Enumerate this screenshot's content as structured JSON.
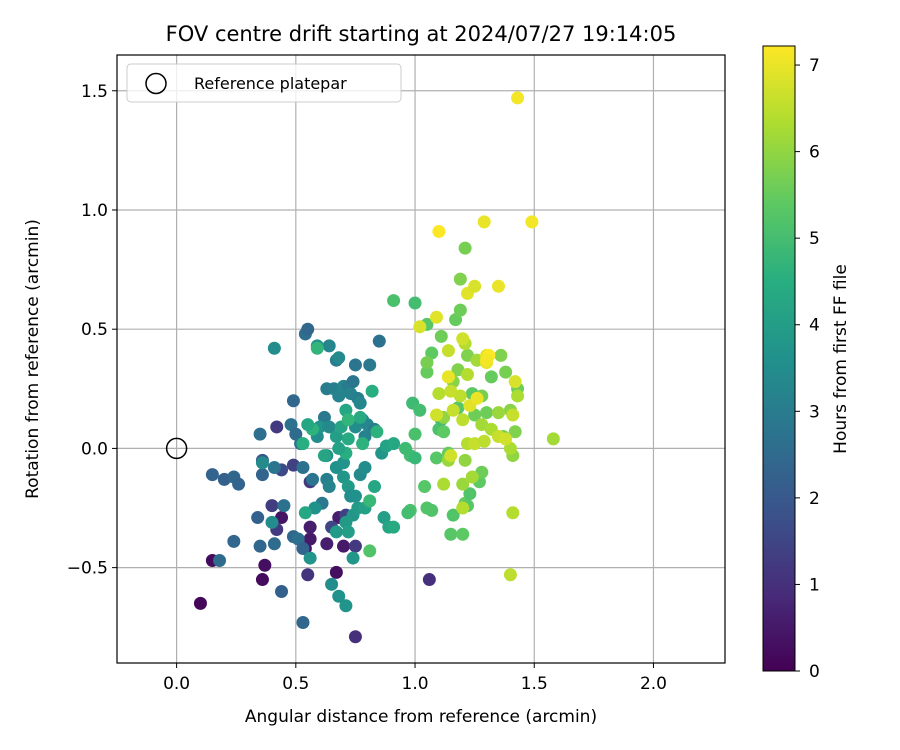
{
  "chart_data": {
    "type": "scatter",
    "title": "FOV centre drift starting at 2024/07/27 19:14:05",
    "xlabel": "Angular distance from reference (arcmin)",
    "ylabel": "Rotation from reference (arcmin)",
    "xlim": [
      -0.25,
      2.3
    ],
    "ylim": [
      -0.9,
      1.65
    ],
    "xticks": [
      0.0,
      0.5,
      1.0,
      1.5,
      2.0
    ],
    "xtick_labels": [
      "0.0",
      "0.5",
      "1.0",
      "1.5",
      "2.0"
    ],
    "yticks": [
      -0.5,
      0.0,
      0.5,
      1.0,
      1.5
    ],
    "ytick_labels": [
      "−0.5",
      "0.0",
      "0.5",
      "1.0",
      "1.5"
    ],
    "grid": true,
    "legend": {
      "position": "top-left",
      "entries": [
        {
          "label": "Reference platepar",
          "marker": "open-circle"
        }
      ]
    },
    "reference_point": {
      "x": 0.0,
      "y": 0.0
    },
    "colorbar": {
      "label": "Hours from first FF file",
      "colormap": "viridis",
      "range": [
        0,
        7.22
      ],
      "ticks": [
        0,
        1,
        2,
        3,
        4,
        5,
        6,
        7
      ],
      "tick_labels": [
        "0",
        "1",
        "2",
        "3",
        "4",
        "5",
        "6",
        "7"
      ]
    },
    "points": [
      {
        "x": 0.1,
        "y": -0.65,
        "c": 0.1
      },
      {
        "x": 0.15,
        "y": -0.47,
        "c": 0.2
      },
      {
        "x": 0.36,
        "y": -0.55,
        "c": 0.2
      },
      {
        "x": 0.37,
        "y": -0.49,
        "c": 0.3
      },
      {
        "x": 0.44,
        "y": -0.29,
        "c": 0.4
      },
      {
        "x": 0.54,
        "y": -0.42,
        "c": 0.4
      },
      {
        "x": 0.56,
        "y": -0.38,
        "c": 0.5
      },
      {
        "x": 0.67,
        "y": -0.52,
        "c": 0.3
      },
      {
        "x": 0.7,
        "y": -0.41,
        "c": 0.5
      },
      {
        "x": 0.68,
        "y": -0.29,
        "c": 0.6
      },
      {
        "x": 0.56,
        "y": -0.33,
        "c": 0.6
      },
      {
        "x": 0.63,
        "y": -0.4,
        "c": 0.6
      },
      {
        "x": 0.75,
        "y": -0.79,
        "c": 1.0
      },
      {
        "x": 0.55,
        "y": -0.53,
        "c": 1.1
      },
      {
        "x": 0.75,
        "y": -0.41,
        "c": 1.2
      },
      {
        "x": 1.06,
        "y": -0.55,
        "c": 1.0
      },
      {
        "x": 0.42,
        "y": -0.34,
        "c": 1.2
      },
      {
        "x": 0.4,
        "y": -0.24,
        "c": 1.3
      },
      {
        "x": 0.71,
        "y": -0.28,
        "c": 1.4
      },
      {
        "x": 0.65,
        "y": -0.33,
        "c": 1.5
      },
      {
        "x": 0.42,
        "y": 0.09,
        "c": 1.2
      },
      {
        "x": 0.49,
        "y": -0.07,
        "c": 1.4
      },
      {
        "x": 0.56,
        "y": -0.14,
        "c": 1.2
      },
      {
        "x": 0.44,
        "y": -0.09,
        "c": 1.6
      },
      {
        "x": 0.36,
        "y": -0.05,
        "c": 1.9
      },
      {
        "x": 0.15,
        "y": -0.11,
        "c": 2.3
      },
      {
        "x": 0.2,
        "y": -0.13,
        "c": 2.2
      },
      {
        "x": 0.24,
        "y": -0.12,
        "c": 2.4
      },
      {
        "x": 0.26,
        "y": -0.15,
        "c": 2.3
      },
      {
        "x": 0.36,
        "y": -0.11,
        "c": 2.3
      },
      {
        "x": 0.34,
        "y": -0.29,
        "c": 2.2
      },
      {
        "x": 0.24,
        "y": -0.39,
        "c": 2.4
      },
      {
        "x": 0.35,
        "y": -0.41,
        "c": 2.4
      },
      {
        "x": 0.18,
        "y": -0.47,
        "c": 2.5
      },
      {
        "x": 0.44,
        "y": -0.6,
        "c": 2.2
      },
      {
        "x": 0.53,
        "y": -0.73,
        "c": 2.4
      },
      {
        "x": 0.41,
        "y": -0.4,
        "c": 2.5
      },
      {
        "x": 0.49,
        "y": -0.37,
        "c": 2.4
      },
      {
        "x": 0.51,
        "y": -0.38,
        "c": 2.6
      },
      {
        "x": 0.53,
        "y": -0.42,
        "c": 2.3
      },
      {
        "x": 0.45,
        "y": -0.24,
        "c": 2.7
      },
      {
        "x": 0.35,
        "y": 0.06,
        "c": 2.6
      },
      {
        "x": 0.48,
        "y": 0.1,
        "c": 2.7
      },
      {
        "x": 0.5,
        "y": 0.06,
        "c": 2.5
      },
      {
        "x": 0.52,
        "y": 0.02,
        "c": 2.6
      },
      {
        "x": 0.49,
        "y": 0.2,
        "c": 2.4
      },
      {
        "x": 0.41,
        "y": -0.08,
        "c": 2.8
      },
      {
        "x": 0.54,
        "y": 0.48,
        "c": 2.6
      },
      {
        "x": 0.55,
        "y": 0.5,
        "c": 2.4
      },
      {
        "x": 0.57,
        "y": -0.13,
        "c": 2.8
      },
      {
        "x": 0.53,
        "y": -0.08,
        "c": 2.7
      },
      {
        "x": 0.61,
        "y": -0.23,
        "c": 2.9
      },
      {
        "x": 0.62,
        "y": 0.13,
        "c": 2.9
      },
      {
        "x": 0.63,
        "y": 0.25,
        "c": 3.0
      },
      {
        "x": 0.63,
        "y": -0.13,
        "c": 3.1
      },
      {
        "x": 0.64,
        "y": -0.16,
        "c": 3.2
      },
      {
        "x": 0.67,
        "y": 0.37,
        "c": 3.0
      },
      {
        "x": 0.66,
        "y": 0.25,
        "c": 3.1
      },
      {
        "x": 0.68,
        "y": 0.22,
        "c": 3.2
      },
      {
        "x": 0.7,
        "y": 0.26,
        "c": 3.3
      },
      {
        "x": 0.72,
        "y": 0.26,
        "c": 3.0
      },
      {
        "x": 0.73,
        "y": 0.23,
        "c": 3.2
      },
      {
        "x": 0.74,
        "y": 0.28,
        "c": 2.8
      },
      {
        "x": 0.76,
        "y": 0.21,
        "c": 3.1
      },
      {
        "x": 0.77,
        "y": 0.19,
        "c": 3.3
      },
      {
        "x": 0.78,
        "y": 0.12,
        "c": 3.4
      },
      {
        "x": 0.75,
        "y": 0.09,
        "c": 3.5
      },
      {
        "x": 0.79,
        "y": 0.05,
        "c": 3.2
      },
      {
        "x": 0.8,
        "y": 0.1,
        "c": 3.3
      },
      {
        "x": 0.83,
        "y": 0.08,
        "c": 3.0
      },
      {
        "x": 0.81,
        "y": 0.35,
        "c": 2.9
      },
      {
        "x": 0.85,
        "y": 0.45,
        "c": 2.7
      },
      {
        "x": 0.75,
        "y": 0.35,
        "c": 2.8
      },
      {
        "x": 0.68,
        "y": 0.38,
        "c": 3.4
      },
      {
        "x": 0.64,
        "y": 0.43,
        "c": 3.3
      },
      {
        "x": 0.59,
        "y": 0.43,
        "c": 3.6
      },
      {
        "x": 0.41,
        "y": 0.42,
        "c": 3.5
      },
      {
        "x": 0.36,
        "y": -0.06,
        "c": 3.4
      },
      {
        "x": 0.4,
        "y": -0.31,
        "c": 3.5
      },
      {
        "x": 0.58,
        "y": -0.25,
        "c": 3.6
      },
      {
        "x": 0.63,
        "y": -0.03,
        "c": 3.6
      },
      {
        "x": 0.59,
        "y": 0.05,
        "c": 3.5
      },
      {
        "x": 0.6,
        "y": 0.09,
        "c": 3.7
      },
      {
        "x": 0.64,
        "y": 0.09,
        "c": 3.4
      },
      {
        "x": 0.67,
        "y": -0.08,
        "c": 3.6
      },
      {
        "x": 0.7,
        "y": -0.12,
        "c": 3.8
      },
      {
        "x": 0.7,
        "y": -0.06,
        "c": 3.7
      },
      {
        "x": 0.72,
        "y": -0.16,
        "c": 3.9
      },
      {
        "x": 0.73,
        "y": -0.2,
        "c": 3.5
      },
      {
        "x": 0.74,
        "y": -0.28,
        "c": 3.8
      },
      {
        "x": 0.75,
        "y": -0.2,
        "c": 3.6
      },
      {
        "x": 0.77,
        "y": -0.11,
        "c": 3.4
      },
      {
        "x": 0.79,
        "y": -0.08,
        "c": 3.5
      },
      {
        "x": 0.56,
        "y": -0.46,
        "c": 3.7
      },
      {
        "x": 0.65,
        "y": -0.57,
        "c": 3.5
      },
      {
        "x": 0.68,
        "y": -0.62,
        "c": 3.6
      },
      {
        "x": 0.71,
        "y": -0.66,
        "c": 3.7
      },
      {
        "x": 0.74,
        "y": -0.46,
        "c": 3.8
      },
      {
        "x": 0.71,
        "y": -0.31,
        "c": 3.9
      },
      {
        "x": 0.67,
        "y": -0.35,
        "c": 3.9
      },
      {
        "x": 0.72,
        "y": -0.35,
        "c": 4.0
      },
      {
        "x": 0.76,
        "y": -0.25,
        "c": 3.9
      },
      {
        "x": 0.79,
        "y": -0.25,
        "c": 4.1
      },
      {
        "x": 0.87,
        "y": -0.29,
        "c": 4.0
      },
      {
        "x": 0.89,
        "y": -0.33,
        "c": 4.2
      },
      {
        "x": 0.91,
        "y": -0.33,
        "c": 4.4
      },
      {
        "x": 0.83,
        "y": -0.16,
        "c": 4.3
      },
      {
        "x": 0.86,
        "y": -0.02,
        "c": 3.8
      },
      {
        "x": 0.88,
        "y": 0.01,
        "c": 4.1
      },
      {
        "x": 0.91,
        "y": 0.02,
        "c": 4.3
      },
      {
        "x": 0.82,
        "y": 0.24,
        "c": 4.5
      },
      {
        "x": 0.84,
        "y": 0.07,
        "c": 4.6
      },
      {
        "x": 0.77,
        "y": 0.13,
        "c": 4.4
      },
      {
        "x": 0.72,
        "y": 0.04,
        "c": 4.4
      },
      {
        "x": 0.71,
        "y": -0.02,
        "c": 4.5
      },
      {
        "x": 0.57,
        "y": 0.08,
        "c": 4.6
      },
      {
        "x": 0.59,
        "y": 0.42,
        "c": 4.7
      },
      {
        "x": 0.55,
        "y": 0.1,
        "c": 4.3
      },
      {
        "x": 0.53,
        "y": 0.02,
        "c": 4.5
      },
      {
        "x": 0.54,
        "y": -0.27,
        "c": 4.3
      },
      {
        "x": 0.62,
        "y": -0.03,
        "c": 4.2
      },
      {
        "x": 0.67,
        "y": 0.05,
        "c": 4.0
      },
      {
        "x": 0.68,
        "y": 0.0,
        "c": 4.1
      },
      {
        "x": 0.69,
        "y": 0.09,
        "c": 4.2
      },
      {
        "x": 0.71,
        "y": 0.16,
        "c": 4.3
      },
      {
        "x": 0.72,
        "y": 0.12,
        "c": 4.7
      },
      {
        "x": 0.78,
        "y": 0.02,
        "c": 4.6
      },
      {
        "x": 0.81,
        "y": -0.22,
        "c": 4.8
      },
      {
        "x": 0.91,
        "y": 0.62,
        "c": 5.1
      },
      {
        "x": 1.0,
        "y": 0.61,
        "c": 5.0
      },
      {
        "x": 0.99,
        "y": 0.19,
        "c": 4.9
      },
      {
        "x": 1.02,
        "y": 0.16,
        "c": 5.0
      },
      {
        "x": 1.0,
        "y": 0.06,
        "c": 5.1
      },
      {
        "x": 0.98,
        "y": -0.03,
        "c": 5.0
      },
      {
        "x": 1.0,
        "y": -0.04,
        "c": 4.8
      },
      {
        "x": 0.96,
        "y": 0.0,
        "c": 4.9
      },
      {
        "x": 0.98,
        "y": -0.26,
        "c": 5.1
      },
      {
        "x": 0.97,
        "y": -0.27,
        "c": 5.0
      },
      {
        "x": 0.81,
        "y": -0.43,
        "c": 5.2
      },
      {
        "x": 1.04,
        "y": -0.16,
        "c": 5.3
      },
      {
        "x": 1.05,
        "y": -0.25,
        "c": 5.2
      },
      {
        "x": 1.07,
        "y": -0.26,
        "c": 5.2
      },
      {
        "x": 1.09,
        "y": -0.04,
        "c": 5.3
      },
      {
        "x": 1.1,
        "y": 0.08,
        "c": 5.1
      },
      {
        "x": 1.11,
        "y": 0.12,
        "c": 5.0
      },
      {
        "x": 1.12,
        "y": 0.07,
        "c": 5.4
      },
      {
        "x": 1.14,
        "y": -0.02,
        "c": 5.5
      },
      {
        "x": 1.15,
        "y": -0.36,
        "c": 5.3
      },
      {
        "x": 1.16,
        "y": -0.28,
        "c": 5.2
      },
      {
        "x": 1.2,
        "y": -0.36,
        "c": 5.4
      },
      {
        "x": 1.21,
        "y": -0.23,
        "c": 5.5
      },
      {
        "x": 1.22,
        "y": -0.24,
        "c": 5.3
      },
      {
        "x": 1.23,
        "y": -0.19,
        "c": 5.2
      },
      {
        "x": 1.27,
        "y": -0.14,
        "c": 5.4
      },
      {
        "x": 1.28,
        "y": -0.1,
        "c": 5.6
      },
      {
        "x": 1.05,
        "y": 0.52,
        "c": 5.3
      },
      {
        "x": 1.07,
        "y": 0.4,
        "c": 5.4
      },
      {
        "x": 1.05,
        "y": 0.32,
        "c": 5.5
      },
      {
        "x": 1.05,
        "y": 0.36,
        "c": 5.7
      },
      {
        "x": 1.11,
        "y": 0.47,
        "c": 5.6
      },
      {
        "x": 1.17,
        "y": 0.54,
        "c": 5.5
      },
      {
        "x": 1.18,
        "y": 0.33,
        "c": 5.8
      },
      {
        "x": 1.18,
        "y": 0.17,
        "c": 5.3
      },
      {
        "x": 1.21,
        "y": 0.84,
        "c": 5.7
      },
      {
        "x": 1.19,
        "y": 0.71,
        "c": 5.8
      },
      {
        "x": 1.19,
        "y": 0.58,
        "c": 5.6
      },
      {
        "x": 1.16,
        "y": 0.28,
        "c": 5.9
      },
      {
        "x": 1.22,
        "y": 0.39,
        "c": 5.8
      },
      {
        "x": 1.24,
        "y": 0.23,
        "c": 5.4
      },
      {
        "x": 1.25,
        "y": 0.14,
        "c": 5.6
      },
      {
        "x": 1.26,
        "y": 0.37,
        "c": 5.5
      },
      {
        "x": 1.28,
        "y": 0.22,
        "c": 5.7
      },
      {
        "x": 1.3,
        "y": 0.15,
        "c": 5.6
      },
      {
        "x": 1.32,
        "y": 0.3,
        "c": 5.5
      },
      {
        "x": 1.36,
        "y": 0.39,
        "c": 5.8
      },
      {
        "x": 1.38,
        "y": 0.32,
        "c": 5.7
      },
      {
        "x": 1.4,
        "y": 0.16,
        "c": 5.9
      },
      {
        "x": 1.43,
        "y": 0.25,
        "c": 5.6
      },
      {
        "x": 1.42,
        "y": 0.07,
        "c": 5.8
      },
      {
        "x": 1.37,
        "y": 0.05,
        "c": 5.7
      },
      {
        "x": 1.41,
        "y": -0.03,
        "c": 6.0
      },
      {
        "x": 1.14,
        "y": -0.05,
        "c": 6.1
      },
      {
        "x": 1.12,
        "y": 0.13,
        "c": 6.0
      },
      {
        "x": 1.2,
        "y": -0.15,
        "c": 6.1
      },
      {
        "x": 1.24,
        "y": -0.12,
        "c": 6.2
      },
      {
        "x": 1.21,
        "y": -0.05,
        "c": 6.0
      },
      {
        "x": 1.12,
        "y": -0.15,
        "c": 6.3
      },
      {
        "x": 1.28,
        "y": 0.1,
        "c": 6.2
      },
      {
        "x": 1.26,
        "y": 0.37,
        "c": 6.2
      },
      {
        "x": 1.35,
        "y": 0.15,
        "c": 6.1
      },
      {
        "x": 1.43,
        "y": 0.22,
        "c": 6.3
      },
      {
        "x": 1.58,
        "y": 0.04,
        "c": 6.2
      },
      {
        "x": 1.4,
        "y": 0.0,
        "c": 6.3
      },
      {
        "x": 1.2,
        "y": -0.25,
        "c": 6.4
      },
      {
        "x": 1.41,
        "y": -0.27,
        "c": 6.4
      },
      {
        "x": 1.4,
        "y": -0.53,
        "c": 6.5
      },
      {
        "x": 1.21,
        "y": 0.44,
        "c": 6.4
      },
      {
        "x": 1.22,
        "y": 0.31,
        "c": 6.4
      },
      {
        "x": 1.19,
        "y": 0.22,
        "c": 6.5
      },
      {
        "x": 1.16,
        "y": 0.16,
        "c": 6.6
      },
      {
        "x": 1.2,
        "y": 0.12,
        "c": 6.5
      },
      {
        "x": 1.22,
        "y": 0.02,
        "c": 6.4
      },
      {
        "x": 1.25,
        "y": 0.02,
        "c": 6.6
      },
      {
        "x": 1.29,
        "y": 0.03,
        "c": 6.5
      },
      {
        "x": 1.32,
        "y": 0.08,
        "c": 6.3
      },
      {
        "x": 1.35,
        "y": 0.05,
        "c": 6.6
      },
      {
        "x": 1.38,
        "y": 0.04,
        "c": 6.7
      },
      {
        "x": 1.41,
        "y": 0.14,
        "c": 6.6
      },
      {
        "x": 1.14,
        "y": 0.41,
        "c": 6.6
      },
      {
        "x": 1.15,
        "y": 0.24,
        "c": 6.6
      },
      {
        "x": 1.1,
        "y": 0.23,
        "c": 6.4
      },
      {
        "x": 1.09,
        "y": 0.14,
        "c": 6.7
      },
      {
        "x": 1.14,
        "y": 0.3,
        "c": 6.8
      },
      {
        "x": 1.15,
        "y": -0.03,
        "c": 6.7
      },
      {
        "x": 1.02,
        "y": 0.51,
        "c": 6.8
      },
      {
        "x": 1.2,
        "y": 0.46,
        "c": 6.7
      },
      {
        "x": 1.22,
        "y": 0.65,
        "c": 6.9
      },
      {
        "x": 1.25,
        "y": 0.68,
        "c": 6.8
      },
      {
        "x": 1.23,
        "y": 0.18,
        "c": 6.9
      },
      {
        "x": 1.26,
        "y": 0.21,
        "c": 7.0
      },
      {
        "x": 1.3,
        "y": 0.39,
        "c": 6.9
      },
      {
        "x": 1.3,
        "y": 0.36,
        "c": 7.0
      },
      {
        "x": 1.35,
        "y": 0.68,
        "c": 7.0
      },
      {
        "x": 1.42,
        "y": 0.28,
        "c": 6.8
      },
      {
        "x": 1.09,
        "y": 0.55,
        "c": 6.9
      },
      {
        "x": 1.14,
        "y": 0.3,
        "c": 7.0
      },
      {
        "x": 1.29,
        "y": 0.95,
        "c": 7.0
      },
      {
        "x": 1.49,
        "y": 0.95,
        "c": 7.1
      },
      {
        "x": 1.1,
        "y": 0.91,
        "c": 7.2
      },
      {
        "x": 1.43,
        "y": 1.47,
        "c": 7.1
      },
      {
        "x": 1.31,
        "y": 0.39,
        "c": 7.2
      },
      {
        "x": 1.3,
        "y": 0.37,
        "c": 7.1
      }
    ]
  }
}
